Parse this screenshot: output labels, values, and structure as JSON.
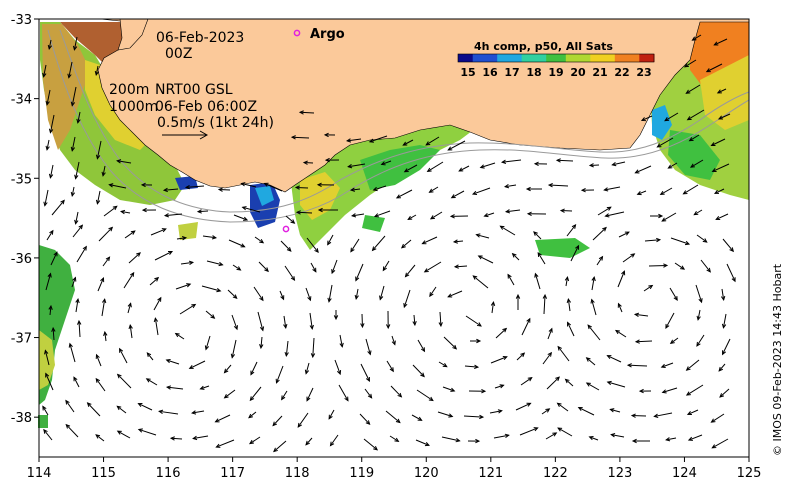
{
  "map": {
    "lon_range": [
      114,
      125
    ],
    "lat_range": [
      -38.5,
      -33
    ],
    "lon_ticks": [
      "114",
      "115",
      "116",
      "117",
      "118",
      "119",
      "120",
      "121",
      "122",
      "123",
      "124",
      "125"
    ],
    "lat_ticks": [
      "-33",
      "-34",
      "-35",
      "-36",
      "-37",
      "-38"
    ],
    "land_color": "#fbc99a",
    "ocean_color": "#ffffff"
  },
  "annotations": {
    "date": "06-Feb-2023",
    "time": "00Z",
    "isobath_line1_a": "200m",
    "isobath_line1_b": "NRT00 GSL",
    "isobath_line2_a": "1000m",
    "isobath_line2_b": "06-Feb 06:00Z",
    "scale_text": "0.5m/s (1kt 24h)"
  },
  "argo": {
    "label": "Argo",
    "color": "#e020e0"
  },
  "colorbar": {
    "title": "4h comp, p50, All Sats",
    "ticks": [
      "15",
      "16",
      "17",
      "18",
      "19",
      "20",
      "21",
      "22",
      "23"
    ],
    "colors": [
      "#0a0a8a",
      "#1f4fd0",
      "#20a8e0",
      "#30d0a0",
      "#40c040",
      "#b0d830",
      "#f0d020",
      "#f08020",
      "#c02010"
    ]
  },
  "credit": "© IMOS 09-Feb-2023 14:43 Hobart"
}
